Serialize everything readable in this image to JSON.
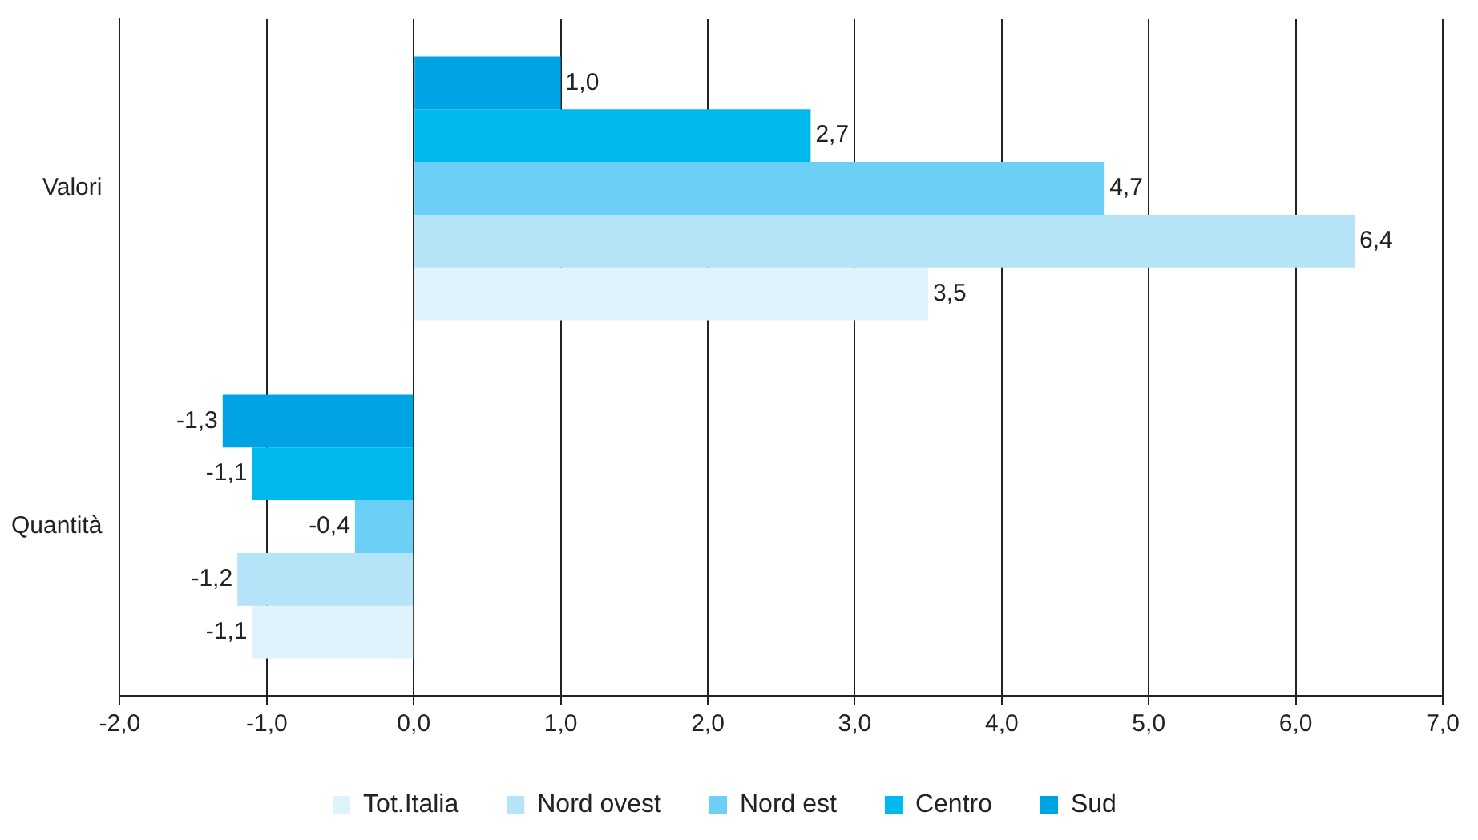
{
  "chart_data": {
    "type": "bar",
    "orientation": "horizontal",
    "categories": [
      "Valori",
      "Quantità"
    ],
    "series": [
      {
        "name": "Tot.Italia",
        "color": "#def3fb",
        "values": [
          3.5,
          -1.1
        ],
        "value_labels": [
          "3,5",
          "-1,1"
        ]
      },
      {
        "name": "Nord ovest",
        "color": "#b5e4f8",
        "values": [
          6.4,
          -1.2
        ],
        "value_labels": [
          "6,4",
          "-1,2"
        ]
      },
      {
        "name": "Nord est",
        "color": "#6ccff5",
        "values": [
          4.7,
          -0.4
        ],
        "value_labels": [
          "4,7",
          "-0,4"
        ]
      },
      {
        "name": "Centro",
        "color": "#00b8ee",
        "values": [
          2.7,
          -1.1
        ],
        "value_labels": [
          "2,7",
          "-1,1"
        ]
      },
      {
        "name": "Sud",
        "color": "#00a3e4",
        "values": [
          1.0,
          -1.3
        ],
        "value_labels": [
          "1,0",
          "-1,3"
        ]
      }
    ],
    "xlim": [
      -2,
      7
    ],
    "xticks": [
      {
        "value": -2,
        "label": "-2,0"
      },
      {
        "value": -1,
        "label": "-1,0"
      },
      {
        "value": 0,
        "label": "0,0"
      },
      {
        "value": 1,
        "label": "1,0"
      },
      {
        "value": 2,
        "label": "2,0"
      },
      {
        "value": 3,
        "label": "3,0"
      },
      {
        "value": 4,
        "label": "4,0"
      },
      {
        "value": 5,
        "label": "5,0"
      },
      {
        "value": 6,
        "label": "6,0"
      },
      {
        "value": 7,
        "label": "7,0"
      }
    ],
    "grid": "x",
    "legend": "bottom"
  }
}
